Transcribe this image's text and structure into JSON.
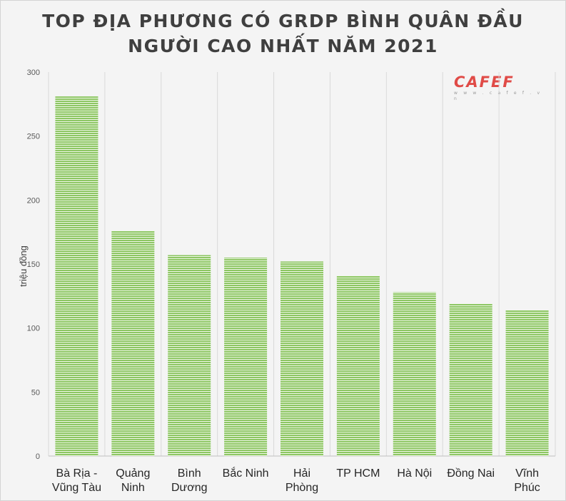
{
  "title_lines": [
    "TOP ĐỊA PHƯƠNG CÓ GRDP BÌNH QUÂN ĐẦU",
    "NGƯỜI CAO NHẤT NĂM 2021"
  ],
  "logo": {
    "text": "CAFEF",
    "url": "w w w . c a f e f . v n",
    "color": "#e04b47"
  },
  "chart_data": {
    "type": "bar",
    "title": "TOP ĐỊA PHƯƠNG CÓ GRDP BÌNH QUÂN ĐẦU NGƯỜI CAO NHẤT NĂM 2021",
    "xlabel": "",
    "ylabel": "triệu đồng",
    "categories": [
      [
        "Bà Rịa -",
        "Vũng Tàu"
      ],
      [
        "Quảng",
        "Ninh"
      ],
      [
        "Bình",
        "Dương"
      ],
      [
        "Bắc Ninh"
      ],
      [
        "Hải",
        "Phòng"
      ],
      [
        "TP HCM"
      ],
      [
        "Hà Nội"
      ],
      [
        "Đồng Nai"
      ],
      [
        "Vĩnh",
        "Phúc"
      ]
    ],
    "values": [
      281,
      176,
      157,
      155,
      152,
      141,
      128,
      119,
      114
    ],
    "ylim": [
      0,
      300
    ],
    "yticks": [
      0,
      50,
      100,
      150,
      200,
      250,
      300
    ],
    "grid": "vertical",
    "legend": "none",
    "bar_color": "#8dc663",
    "bar_stripe_color": "#eef7e6"
  }
}
